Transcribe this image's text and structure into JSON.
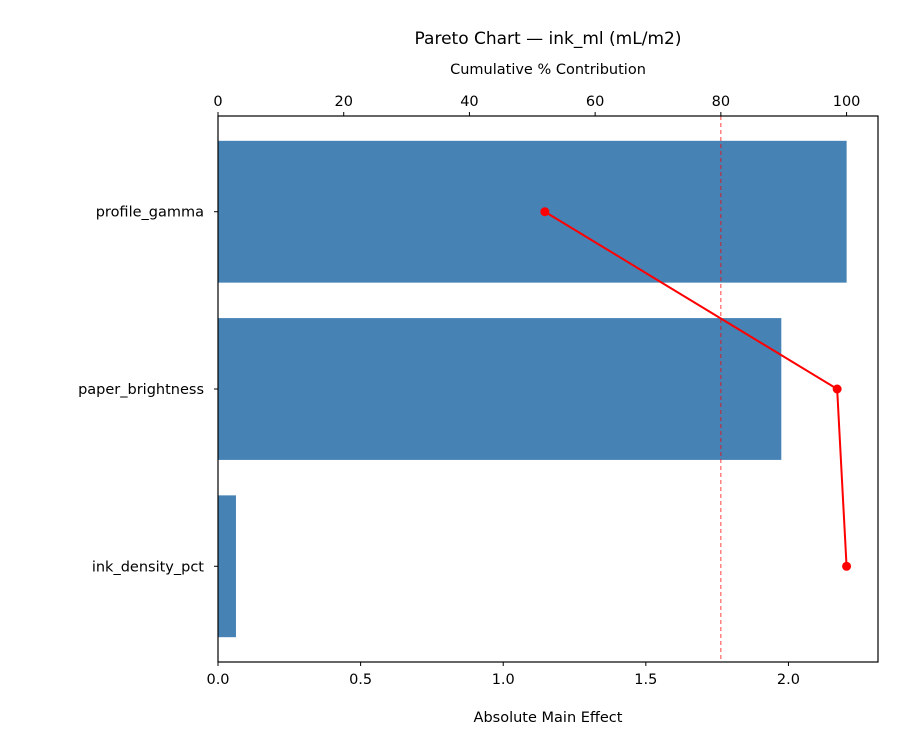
{
  "chart_data": {
    "type": "bar",
    "orientation": "horizontal",
    "title": "Pareto Chart — ink_ml (mL/m2)",
    "xlabel": "Absolute Main Effect",
    "x2label": "Cumulative % Contribution",
    "categories": [
      "profile_gamma",
      "paper_brightness",
      "ink_density_pct"
    ],
    "values": [
      2.204,
      1.975,
      0.063
    ],
    "cumulative_pct": [
      52.0,
      98.5,
      100.0
    ],
    "xlim": [
      0,
      2.314
    ],
    "x2lim": [
      0,
      105
    ],
    "xticks": [
      "0.0",
      "0.5",
      "1.0",
      "1.5",
      "2.0"
    ],
    "x2ticks": [
      "0",
      "20",
      "40",
      "60",
      "80",
      "100"
    ],
    "threshold_pct": 80,
    "grid": false,
    "colors": {
      "bar": "#4682b4",
      "cumulative": "#ff0000",
      "threshold": "#ff0000"
    }
  }
}
